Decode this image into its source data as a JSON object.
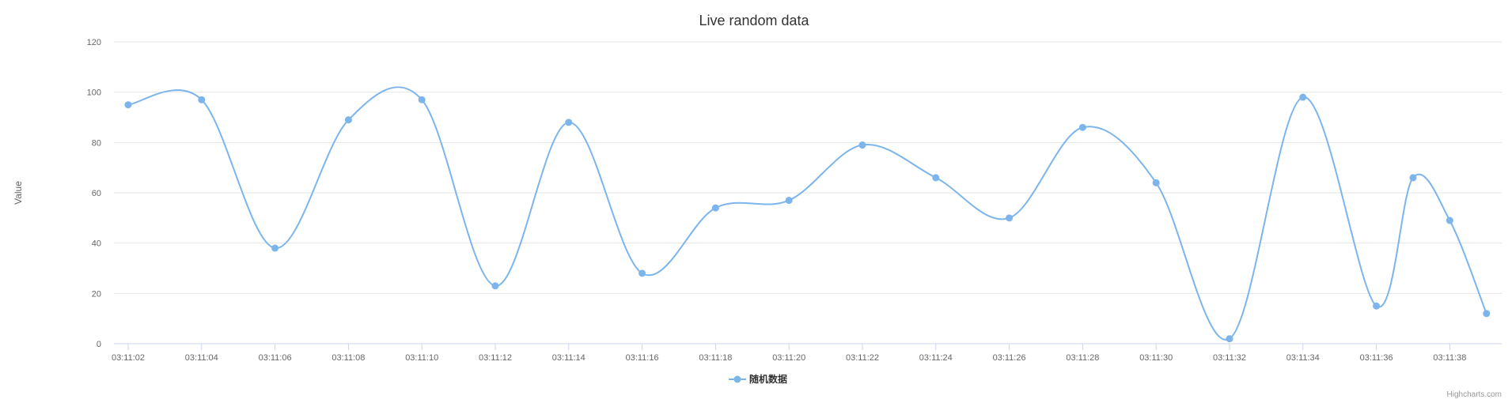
{
  "chart_data": {
    "type": "line",
    "title": "Live random data",
    "xlabel": "",
    "ylabel": "Value",
    "ylim": [
      0,
      120
    ],
    "yticks": [
      0,
      20,
      40,
      60,
      80,
      100,
      120
    ],
    "xticks": [
      "03:11:02",
      "03:11:04",
      "03:11:06",
      "03:11:08",
      "03:11:10",
      "03:11:12",
      "03:11:14",
      "03:11:16",
      "03:11:18",
      "03:11:20",
      "03:11:22",
      "03:11:24",
      "03:11:26",
      "03:11:28",
      "03:11:30",
      "03:11:32",
      "03:11:34",
      "03:11:36",
      "03:11:38"
    ],
    "xrange": [
      "03:11:02",
      "03:11:39"
    ],
    "grid": true,
    "legend_position": "bottom-center",
    "series": [
      {
        "name": "随机数据",
        "color": "#7cb5ec",
        "points": [
          {
            "x": "03:11:02",
            "y": 95
          },
          {
            "x": "03:11:04",
            "y": 97
          },
          {
            "x": "03:11:06",
            "y": 38
          },
          {
            "x": "03:11:08",
            "y": 89
          },
          {
            "x": "03:11:10",
            "y": 97
          },
          {
            "x": "03:11:12",
            "y": 23
          },
          {
            "x": "03:11:14",
            "y": 88
          },
          {
            "x": "03:11:16",
            "y": 28
          },
          {
            "x": "03:11:18",
            "y": 54
          },
          {
            "x": "03:11:20",
            "y": 57
          },
          {
            "x": "03:11:22",
            "y": 79
          },
          {
            "x": "03:11:24",
            "y": 66
          },
          {
            "x": "03:11:26",
            "y": 50
          },
          {
            "x": "03:11:28",
            "y": 86
          },
          {
            "x": "03:11:30",
            "y": 64
          },
          {
            "x": "03:11:32",
            "y": 2
          },
          {
            "x": "03:11:34",
            "y": 98
          },
          {
            "x": "03:11:36",
            "y": 15
          },
          {
            "x": "03:11:37",
            "y": 66
          },
          {
            "x": "03:11:38",
            "y": 49
          },
          {
            "x": "03:11:39",
            "y": 12
          }
        ]
      }
    ]
  },
  "credits": "Highcharts.com"
}
